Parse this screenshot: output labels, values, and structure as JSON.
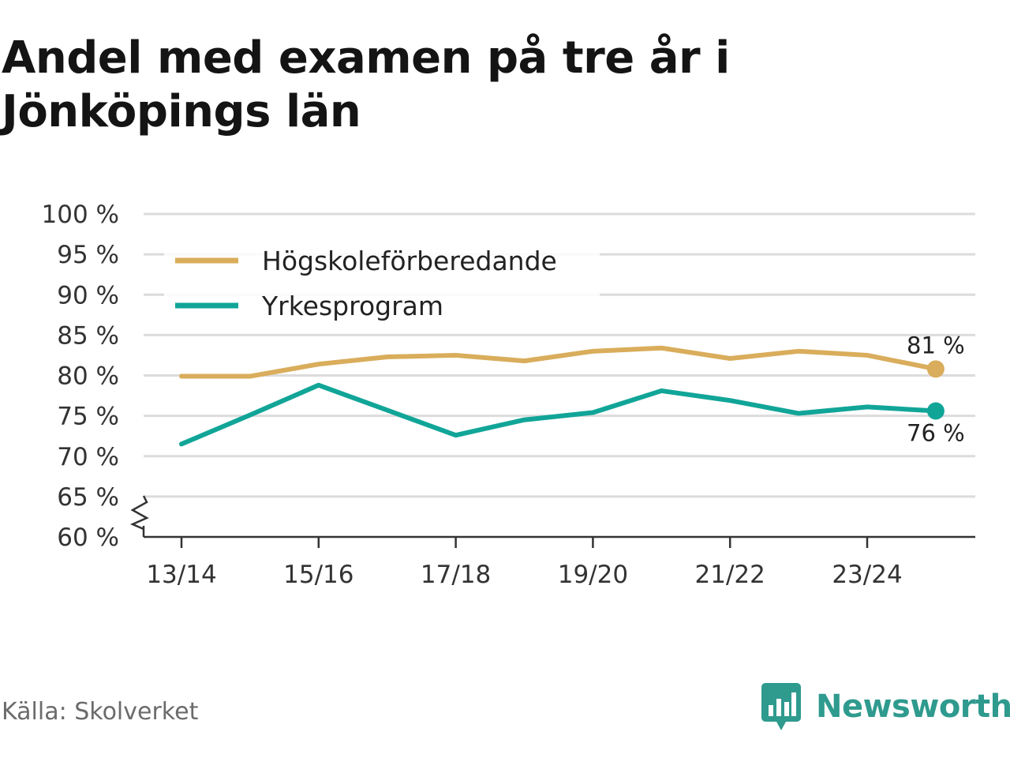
{
  "title": "Andel med examen på tre år i Jönköpings län",
  "source": "Källa: Skolverket",
  "brand": {
    "name": "Newsworthy",
    "icon": "newsworthy-logo-icon",
    "color": "#2f9a8e"
  },
  "chart_data": {
    "type": "line",
    "title": "Andel med examen på tre år i Jönköpings län",
    "xlabel": "",
    "ylabel": "",
    "x": [
      "13/14",
      "14/15",
      "15/16",
      "16/17",
      "17/18",
      "18/19",
      "19/20",
      "20/21",
      "21/22",
      "22/23",
      "23/24",
      "24/25"
    ],
    "x_tick_labels": [
      "13/14",
      "15/16",
      "17/18",
      "19/20",
      "21/22",
      "23/24"
    ],
    "ylim": [
      60,
      100
    ],
    "y_ticks": [
      60,
      65,
      70,
      75,
      80,
      85,
      90,
      95,
      100
    ],
    "y_tick_labels": [
      "60 %",
      "65 %",
      "70 %",
      "75 %",
      "80 %",
      "85 %",
      "90 %",
      "95 %",
      "100 %"
    ],
    "y_axis_break": true,
    "grid": true,
    "legend_position": "top-left",
    "series": [
      {
        "name": "Högskoleförberedande",
        "color": "#d9ad5b",
        "values": [
          79.9,
          79.9,
          81.4,
          82.3,
          82.5,
          81.8,
          83.0,
          83.4,
          82.1,
          83.0,
          82.5,
          80.8
        ],
        "end_label": "81 %"
      },
      {
        "name": "Yrkesprogram",
        "color": "#11a598",
        "values": [
          71.5,
          75.1,
          78.8,
          75.7,
          72.6,
          74.5,
          75.4,
          78.1,
          76.9,
          75.3,
          76.1,
          75.6
        ],
        "end_label": "76 %"
      }
    ]
  }
}
